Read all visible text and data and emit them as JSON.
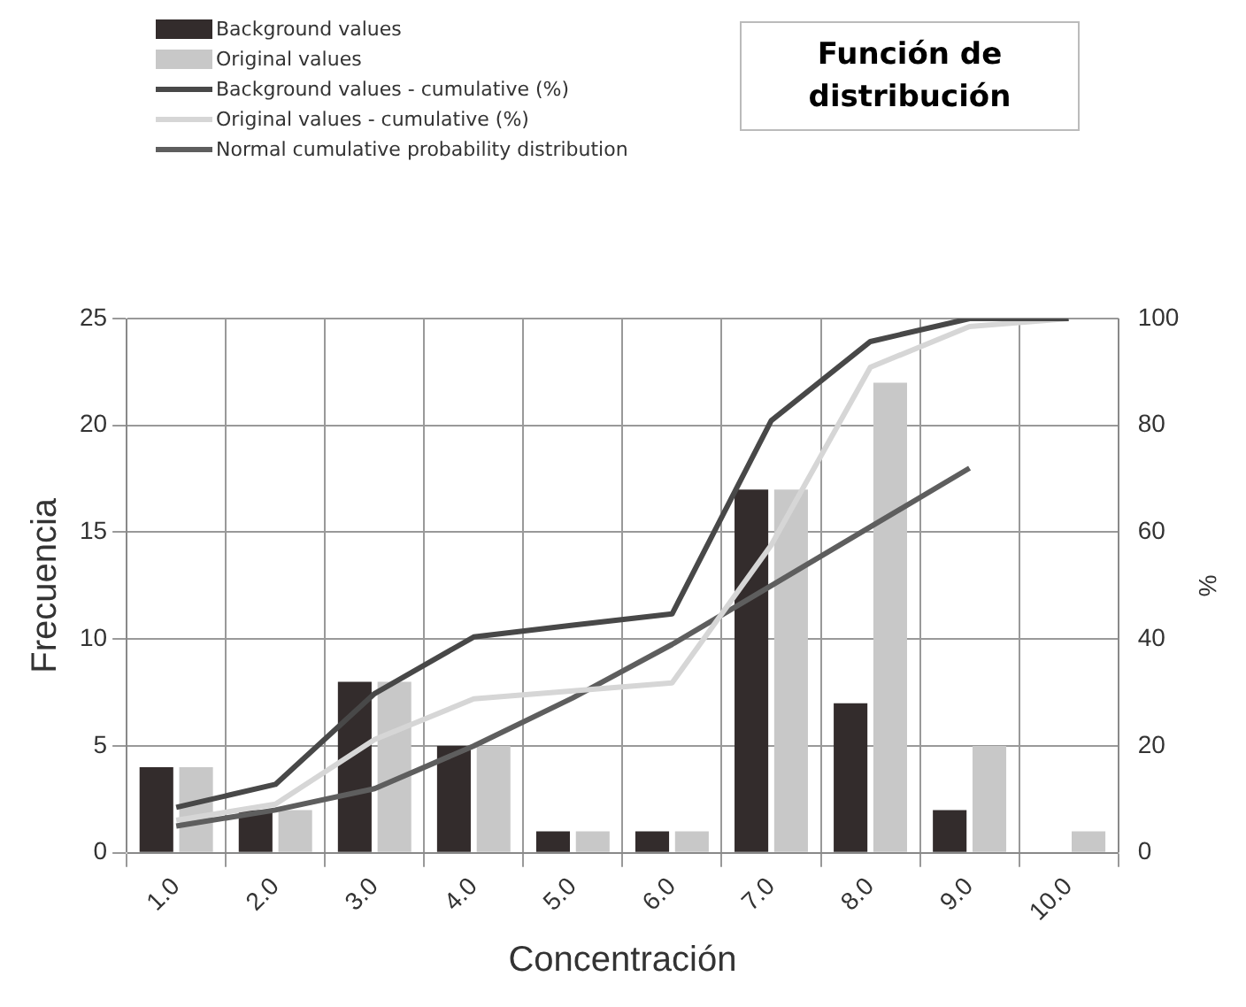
{
  "chart_data": {
    "type": "bar",
    "title": "Función de distribución",
    "xlabel": "Concentración",
    "ylabel": "Frecuencia",
    "y2label": "%",
    "categories": [
      "1.0",
      "2.0",
      "3.0",
      "4.0",
      "5.0",
      "6.0",
      "7.0",
      "8.0",
      "9.0",
      "10.0"
    ],
    "series": [
      {
        "name": "Background values",
        "color": "#332c2c",
        "values": [
          4,
          2,
          8,
          5,
          1,
          1,
          17,
          7,
          2,
          0
        ]
      },
      {
        "name": "Original values",
        "color": "#c8c8c8",
        "values": [
          4,
          2,
          8,
          5,
          1,
          1,
          17,
          22,
          5,
          1
        ]
      },
      {
        "name": "Background values - cumulative (%)",
        "type": "line",
        "axis": "y2",
        "color": "#484848",
        "values": [
          8.5,
          12.8,
          29.8,
          40.4,
          42.6,
          44.7,
          80.9,
          95.7,
          100,
          100
        ]
      },
      {
        "name": "Original values - cumulative (%)",
        "type": "line",
        "axis": "y2",
        "color": "#d6d6d6",
        "values": [
          6.1,
          9.1,
          21.2,
          28.8,
          30.3,
          31.8,
          57.6,
          90.9,
          98.5,
          100
        ]
      },
      {
        "name": "Normal cumulative probability distribution",
        "type": "line",
        "axis": "y2",
        "color": "#5e5e5e",
        "values": [
          5,
          8,
          12,
          20,
          29,
          39,
          50,
          61,
          72,
          null
        ]
      }
    ],
    "ylim": [
      0,
      25
    ],
    "yticks": [
      0,
      5,
      10,
      15,
      20,
      25
    ],
    "y2lim": [
      0,
      100
    ],
    "y2ticks": [
      0,
      20,
      40,
      60,
      80,
      100
    ],
    "grid": true,
    "legend": "top left",
    "marker": "none",
    "line_style": "solid"
  }
}
